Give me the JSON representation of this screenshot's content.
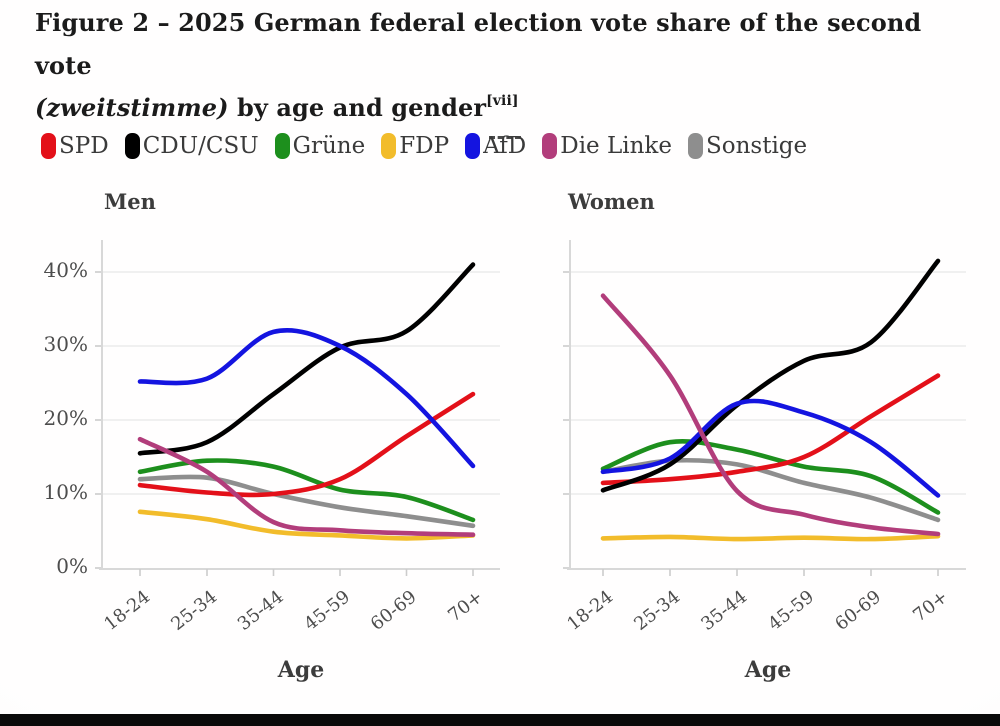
{
  "page": {
    "title": {
      "line1": "Figure 2 – 2025 German federal election vote share of the second vote",
      "line2_italic": "(zweitstimme)",
      "line2_rest": " by age and gender",
      "footnote": "[vii]"
    }
  },
  "legend": {
    "items": [
      {
        "label": "SPD",
        "color": "#e31019"
      },
      {
        "label": "CDU/CSU",
        "color": "#000000"
      },
      {
        "label": "Grüne",
        "color": "#1d8f1d"
      },
      {
        "label": "FDP",
        "color": "#f2bc2b"
      },
      {
        "label": "AfD",
        "color": "#1414e0"
      },
      {
        "label": "Die Linke",
        "color": "#b23d7b"
      },
      {
        "label": "Sonstige",
        "color": "#8e8e8e"
      }
    ]
  },
  "chart_data": {
    "type": "line",
    "categories": [
      "18-24",
      "25-34",
      "35-44",
      "45-59",
      "60-69",
      "70+"
    ],
    "xlabel": "Age",
    "ylabel": "",
    "y_ticks": [
      "0%",
      "10%",
      "20%",
      "30%",
      "40%"
    ],
    "y_tick_values": [
      0,
      10,
      20,
      30,
      40
    ],
    "ylim": [
      0,
      45
    ],
    "unit": "percent of second vote",
    "grid": true,
    "legend_position": "top",
    "panels": [
      {
        "title": "Men",
        "series": [
          {
            "name": "SPD",
            "color": "#e31019",
            "values": [
              11.2,
              10.2,
              10.0,
              12.0,
              17.8,
              23.5
            ]
          },
          {
            "name": "CDU/CSU",
            "color": "#000000",
            "values": [
              15.5,
              17.0,
              23.5,
              29.8,
              32.0,
              41.0
            ]
          },
          {
            "name": "Grüne",
            "color": "#1d8f1d",
            "values": [
              13.0,
              14.5,
              13.7,
              10.6,
              9.6,
              6.5
            ]
          },
          {
            "name": "FDP",
            "color": "#f2bc2b",
            "values": [
              7.6,
              6.6,
              4.9,
              4.4,
              4.0,
              4.4
            ]
          },
          {
            "name": "AfD",
            "color": "#1414e0",
            "values": [
              25.2,
              25.6,
              31.9,
              30.0,
              23.5,
              13.8
            ]
          },
          {
            "name": "Die Linke",
            "color": "#b23d7b",
            "values": [
              17.4,
              13.0,
              6.2,
              5.1,
              4.7,
              4.5
            ]
          },
          {
            "name": "Sonstige",
            "color": "#8e8e8e",
            "values": [
              12.0,
              12.2,
              10.0,
              8.2,
              7.0,
              5.7
            ]
          }
        ]
      },
      {
        "title": "Women",
        "series": [
          {
            "name": "SPD",
            "color": "#e31019",
            "values": [
              11.5,
              12.0,
              13.0,
              15.0,
              20.5,
              26.0
            ]
          },
          {
            "name": "CDU/CSU",
            "color": "#000000",
            "values": [
              10.5,
              14.0,
              22.0,
              28.0,
              30.5,
              41.5
            ]
          },
          {
            "name": "Grüne",
            "color": "#1d8f1d",
            "values": [
              13.4,
              17.0,
              16.0,
              13.7,
              12.4,
              7.5
            ]
          },
          {
            "name": "FDP",
            "color": "#f2bc2b",
            "values": [
              4.0,
              4.2,
              3.9,
              4.1,
              3.9,
              4.3
            ]
          },
          {
            "name": "AfD",
            "color": "#1414e0",
            "values": [
              13.0,
              14.8,
              22.2,
              21.0,
              17.0,
              9.8
            ]
          },
          {
            "name": "Die Linke",
            "color": "#b23d7b",
            "values": [
              36.8,
              26.0,
              10.4,
              7.2,
              5.5,
              4.6
            ]
          },
          {
            "name": "Sonstige",
            "color": "#8e8e8e",
            "values": [
              13.0,
              14.5,
              14.0,
              11.5,
              9.5,
              6.5
            ]
          }
        ]
      }
    ]
  }
}
